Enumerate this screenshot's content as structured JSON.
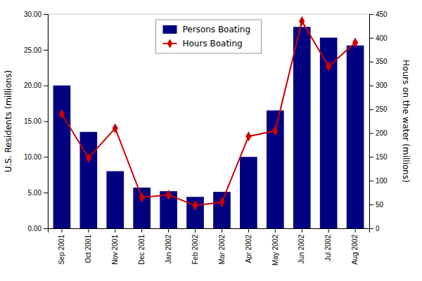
{
  "chart_data": {
    "type": "bar",
    "categories": [
      "Sep 2001",
      "Oct 2001",
      "Nov 2001",
      "Dec 2001",
      "Jan 2002",
      "Feb 2002",
      "Mar 2002",
      "Apr 2002",
      "May 2002",
      "Jun 2002",
      "Jul 2002",
      "Aug 2002"
    ],
    "series": [
      {
        "name": "Persons Boating",
        "type": "bar",
        "color": "#000080",
        "values": [
          20.0,
          13.5,
          8.0,
          5.7,
          5.2,
          4.4,
          5.1,
          10.0,
          16.5,
          28.2,
          26.7,
          25.6
        ]
      },
      {
        "name": "Hours Boating",
        "type": "line",
        "color": "#cc0000",
        "marker": "diamond",
        "axis": "y2",
        "values": [
          240,
          148,
          210,
          65,
          70,
          48,
          55,
          193,
          205,
          435,
          340,
          390
        ]
      }
    ],
    "ylabel": "U.S. Residents (millions)",
    "y2label": "Hours on the water (millions)",
    "ylim": [
      0,
      30
    ],
    "yticks": [
      {
        "value": 0.0,
        "label": "0.00"
      },
      {
        "value": 5.0,
        "label": "5.00"
      },
      {
        "value": 10.0,
        "label": "10.00"
      },
      {
        "value": 15.0,
        "label": "15.00"
      },
      {
        "value": 20.0,
        "label": "20.00"
      },
      {
        "value": 25.0,
        "label": "25.00"
      },
      {
        "value": 30.0,
        "label": "30.00"
      }
    ],
    "y2lim": [
      0,
      450
    ],
    "y2ticks": [
      0,
      50,
      100,
      150,
      200,
      250,
      300,
      350,
      400,
      450
    ],
    "grid": false,
    "legend": "top"
  }
}
